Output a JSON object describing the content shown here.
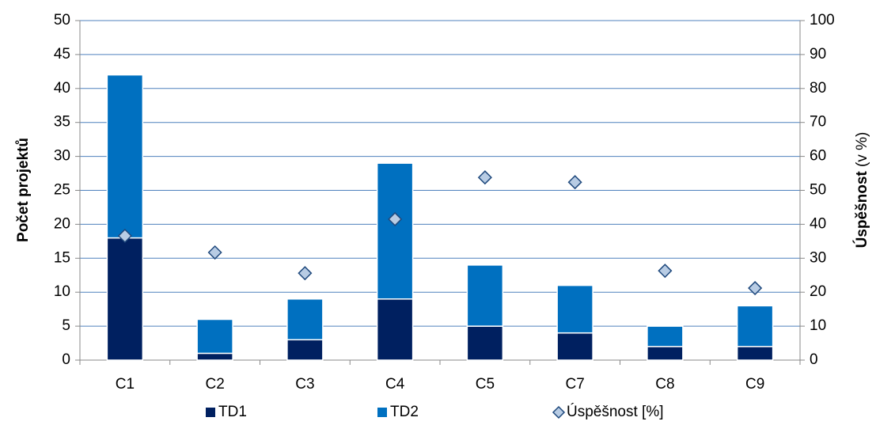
{
  "chart_data": {
    "type": "bar",
    "categories": [
      "C1",
      "C2",
      "C3",
      "C4",
      "C5",
      "C7",
      "C8",
      "C9"
    ],
    "stacked": true,
    "series": [
      {
        "name": "TD1",
        "color": "#002060",
        "values": [
          18,
          1,
          3,
          9,
          5,
          4,
          2,
          2
        ]
      },
      {
        "name": "TD2",
        "color": "#0070c0",
        "values": [
          24,
          5,
          6,
          20,
          9,
          7,
          3,
          6
        ]
      },
      {
        "name": "Úspěšnost [%]",
        "color": "#b8cce4",
        "type": "scatter",
        "marker": "diamond",
        "axis": "y2",
        "values": [
          36.6,
          31.7,
          25.6,
          41.5,
          53.8,
          52.4,
          26.3,
          21.2
        ]
      }
    ],
    "ylabel": "Počet projektů",
    "y2label": [
      "Úspěšnost",
      "(v %)"
    ],
    "ylim": [
      0,
      50
    ],
    "yticks": [
      0,
      5,
      10,
      15,
      20,
      25,
      30,
      35,
      40,
      45,
      50
    ],
    "y2lim": [
      0,
      100
    ],
    "y2ticks": [
      0,
      10,
      20,
      30,
      40,
      50,
      60,
      70,
      80,
      90,
      100
    ],
    "grid": true,
    "legend": "bottom"
  }
}
